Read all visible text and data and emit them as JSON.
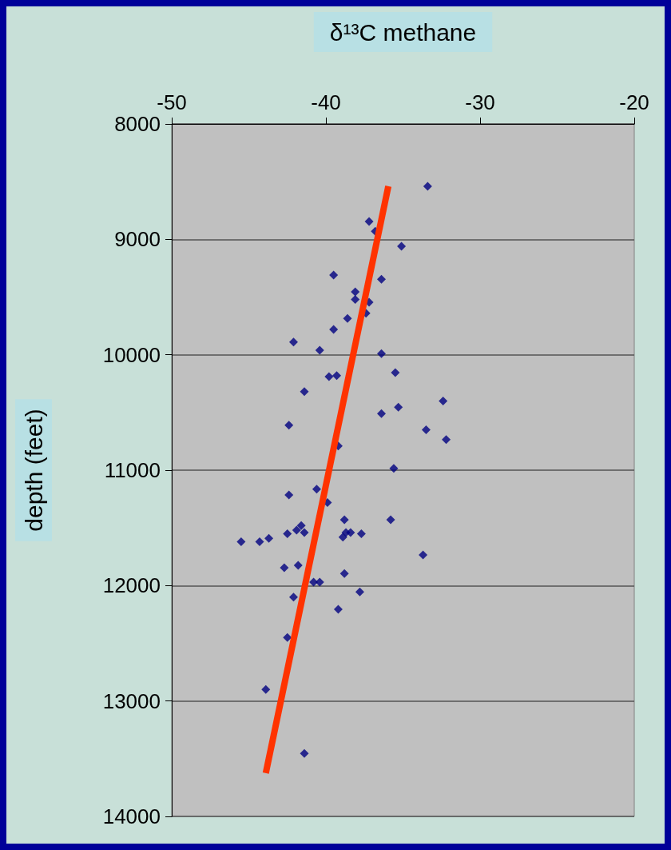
{
  "chart_data": {
    "type": "scatter",
    "xlabel": "δ¹³C methane",
    "ylabel": "depth (feet)",
    "xlim": [
      -50,
      -20
    ],
    "xticks": [
      -50,
      -40,
      -30,
      -20
    ],
    "ylim": [
      14000,
      8000
    ],
    "yticks": [
      8000,
      9000,
      10000,
      11000,
      12000,
      13000,
      14000
    ],
    "grid": "y",
    "marker": "diamond",
    "series": [
      {
        "color": "#000080",
        "x": [
          -33.4,
          -37.2,
          -36.8,
          -35.1,
          -39.5,
          -37.2,
          -36.4,
          -38.1,
          -38.1,
          -37.2,
          -37.4,
          -38.6,
          -39.5,
          -42.1,
          -40.4,
          -36.4,
          -35.5,
          -39.8,
          -39.3,
          -41.4,
          -35.3,
          -36.4,
          -32.4,
          -42.4,
          -33.5,
          -32.2,
          -39.2,
          -35.6,
          -40.6,
          -42.4,
          -39.9,
          -38.8,
          -35.8,
          -41.6,
          -42.5,
          -41.9,
          -41.4,
          -38.7,
          -38.4,
          -38.9,
          -37.7,
          -45.5,
          -44.3,
          -43.7,
          -33.7,
          -42.7,
          -41.8,
          -38.8,
          -40.8,
          -40.4,
          -37.8,
          -42.1,
          -39.2,
          -42.5,
          -43.9,
          -41.4
        ],
        "values": [
          8540,
          8845,
          8930,
          9060,
          9310,
          null,
          9345,
          9455,
          9520,
          9545,
          9640,
          9685,
          9780,
          9890,
          9960,
          9990,
          10155,
          10190,
          10180,
          10320,
          10455,
          10510,
          10400,
          10610,
          10650,
          10735,
          10790,
          10985,
          11165,
          11215,
          11280,
          11430,
          11430,
          11480,
          11550,
          11520,
          11540,
          11540,
          11540,
          11580,
          11550,
          11620,
          11620,
          11590,
          11735,
          11845,
          11825,
          11895,
          11970,
          11970,
          12055,
          12100,
          12205,
          12450,
          12900,
          13455
        ]
      },
      {
        "type": "line",
        "color": "#ff3300",
        "marker": "none",
        "x": [
          -35.95,
          -43.9
        ],
        "values": [
          8540,
          13625
        ]
      }
    ]
  }
}
